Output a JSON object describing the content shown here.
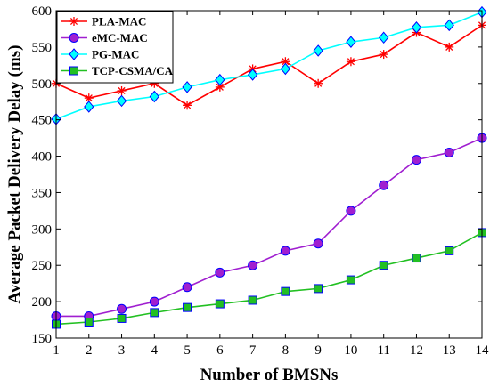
{
  "chart_data": {
    "type": "line",
    "xlabel": "Number of BMSNs",
    "ylabel": "Average Packet Delivery Delay (ms)",
    "x": [
      1,
      2,
      3,
      4,
      5,
      6,
      7,
      8,
      9,
      10,
      11,
      12,
      13,
      14
    ],
    "xlim": [
      1,
      14
    ],
    "ylim": [
      150,
      600
    ],
    "xticks": [
      "1",
      "2",
      "3",
      "4",
      "5",
      "6",
      "7",
      "8",
      "9",
      "10",
      "11",
      "12",
      "13",
      "14"
    ],
    "yticks": [
      "150",
      "200",
      "250",
      "300",
      "350",
      "400",
      "450",
      "500",
      "550",
      "600"
    ],
    "grid": false,
    "legend": "top-left",
    "series": [
      {
        "name": "PLA-MAC",
        "color": "#ff0000",
        "marker": "asterisk",
        "values": [
          500,
          480,
          490,
          500,
          470,
          495,
          520,
          530,
          500,
          530,
          540,
          570,
          550,
          580
        ]
      },
      {
        "name": "eMC-MAC",
        "color": "#a01fd0",
        "marker": "circle",
        "values": [
          180,
          180,
          190,
          200,
          220,
          240,
          250,
          270,
          280,
          325,
          360,
          395,
          405,
          425
        ]
      },
      {
        "name": "PG-MAC",
        "color": "#00ffff",
        "marker": "diamond",
        "values": [
          451,
          468,
          476,
          482,
          495,
          505,
          512,
          520,
          545,
          557,
          563,
          577,
          580,
          598
        ]
      },
      {
        "name": "TCP-CSMA/CA",
        "color": "#22c022",
        "marker": "square",
        "values": [
          169,
          172,
          177,
          185,
          192,
          197,
          202,
          214,
          218,
          230,
          250,
          260,
          270,
          295
        ]
      }
    ]
  }
}
